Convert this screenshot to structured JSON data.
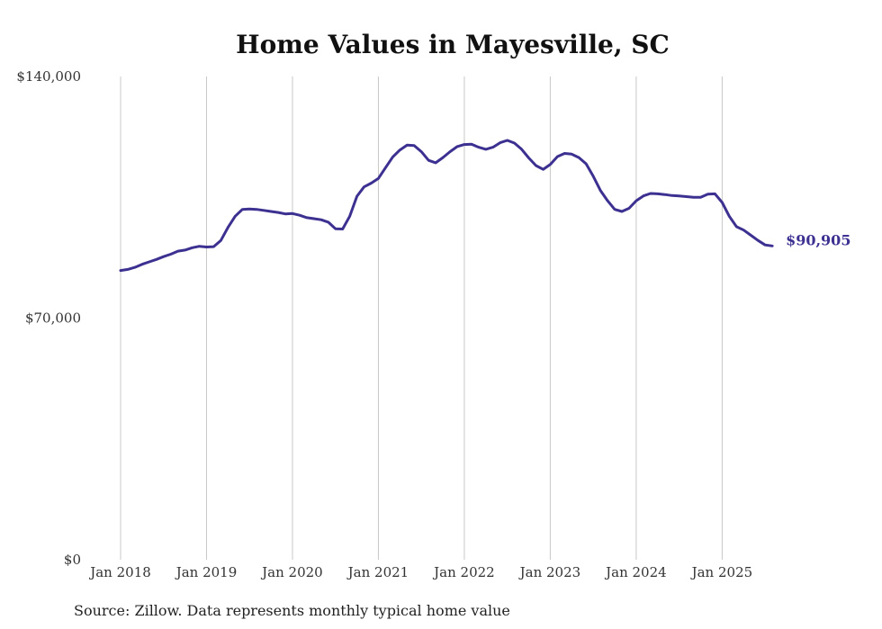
{
  "chart_data": {
    "type": "line",
    "title": "Home Values in Mayesville, SC",
    "xlabel": "",
    "ylabel": "",
    "ylim": [
      0,
      140000
    ],
    "y_ticks": [
      {
        "value": 0,
        "label": "$0"
      },
      {
        "value": 70000,
        "label": "$70,000"
      },
      {
        "value": 140000,
        "label": "$140,000"
      }
    ],
    "x_ticks": [
      {
        "index": 0,
        "label": "Jan 2018"
      },
      {
        "index": 12,
        "label": "Jan 2019"
      },
      {
        "index": 24,
        "label": "Jan 2020"
      },
      {
        "index": 36,
        "label": "Jan 2021"
      },
      {
        "index": 48,
        "label": "Jan 2022"
      },
      {
        "index": 60,
        "label": "Jan 2023"
      },
      {
        "index": 72,
        "label": "Jan 2024"
      },
      {
        "index": 84,
        "label": "Jan 2025"
      }
    ],
    "x_range": [
      0,
      93
    ],
    "grid": "vertical",
    "legend": "none",
    "series": [
      {
        "name": "Typical home value",
        "color": "#3c3191",
        "start": "Jan 2018",
        "frequency": "monthly",
        "values": [
          83800,
          84100,
          84700,
          85600,
          86300,
          87000,
          87800,
          88500,
          89400,
          89700,
          90400,
          90800,
          90600,
          90700,
          92500,
          96300,
          99500,
          101500,
          101600,
          101500,
          101200,
          100900,
          100600,
          100200,
          100300,
          99800,
          99100,
          98800,
          98500,
          97800,
          95900,
          95800,
          99500,
          105300,
          108000,
          109100,
          110500,
          113600,
          116700,
          118700,
          120100,
          120000,
          118200,
          115700,
          115000,
          116500,
          118200,
          119700,
          120300,
          120400,
          119500,
          118900,
          119500,
          120800,
          121500,
          120700,
          118900,
          116400,
          114200,
          113100,
          114500,
          116800,
          117700,
          117500,
          116500,
          114700,
          111100,
          107000,
          104000,
          101500,
          100900,
          101800,
          104000,
          105400,
          106100,
          106000,
          105800,
          105500,
          105400,
          105200,
          105000,
          105000,
          105900,
          106000,
          103500,
          99500,
          96500,
          95500,
          94000,
          92500,
          91200,
          90905
        ],
        "end_label": "$90,905"
      }
    ]
  },
  "source_note": "Source: Zillow. Data represents monthly typical home value"
}
